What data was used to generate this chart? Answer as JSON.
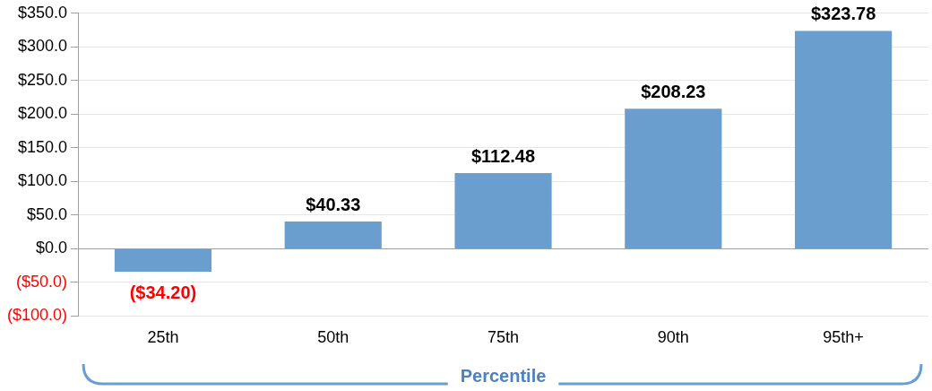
{
  "chart_data": {
    "type": "bar",
    "xlabel": "Percentile",
    "categories": [
      "25th",
      "50th",
      "75th",
      "90th",
      "95th+"
    ],
    "values": [
      -34.2,
      40.33,
      112.48,
      208.23,
      323.78
    ],
    "value_labels": [
      "($34.20)",
      "$40.33",
      "$112.48",
      "$208.23",
      "$323.78"
    ],
    "color": "#6a9ecf",
    "ylim": [
      -100,
      350
    ],
    "yticks": [
      {
        "value": -100,
        "label": "($100.0)"
      },
      {
        "value": -50,
        "label": "($50.0)"
      },
      {
        "value": 0,
        "label": "$0.0"
      },
      {
        "value": 50,
        "label": "$50.0"
      },
      {
        "value": 100,
        "label": "$100.0"
      },
      {
        "value": 150,
        "label": "$150.0"
      },
      {
        "value": 200,
        "label": "$200.0"
      },
      {
        "value": 250,
        "label": "$250.0"
      },
      {
        "value": 300,
        "label": "$300.0"
      },
      {
        "value": 350,
        "label": "$350.0"
      }
    ],
    "grid": "y",
    "legend": false
  }
}
